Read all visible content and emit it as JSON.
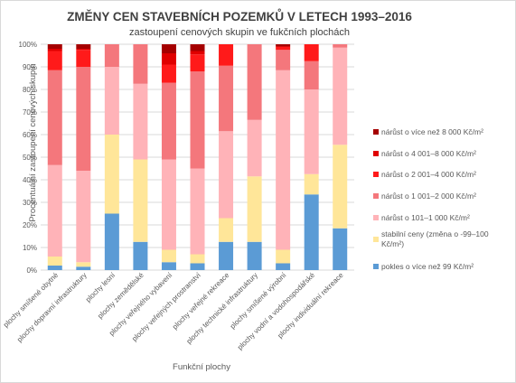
{
  "chart_data": {
    "type": "bar",
    "stacked": "percent",
    "title": "ZMĚNY CEN STAVEBNÍCH POZEMKŮ V LETECH 1993–2016",
    "subtitle": "zastoupení cenových skupin ve fukčních plochách",
    "xlabel": "Funkční plochy",
    "ylabel": "Procentuální zastoupení cenových skupin",
    "ylim": [
      0,
      100
    ],
    "yticks": [
      "0%",
      "10%",
      "20%",
      "30%",
      "40%",
      "50%",
      "60%",
      "70%",
      "80%",
      "90%",
      "100%"
    ],
    "grid": true,
    "legend_position": "right",
    "categories": [
      "plochy smíšené obytné",
      "plochy dopravní infrastruktury",
      "plochy lesní",
      "plochy zemědělské",
      "plochy veřejného vybavení",
      "plochy veřejných prostranství",
      "plochy veřejné rekreace",
      "plochy technické infrastruktury",
      "plochy smíšené výrobní",
      "plochy vodní a vodohospodářské",
      "plochy individuální rekreace"
    ],
    "series": [
      {
        "name": "pokles o více než 99 Kč/m²",
        "color": "#5b9bd5",
        "values": [
          2,
          1.5,
          25,
          12.5,
          3.5,
          3,
          12.5,
          12.5,
          3,
          33.5,
          18.5
        ]
      },
      {
        "name": "stabilní ceny (změna o -99–100 Kč/m²)",
        "color": "#ffe699",
        "values": [
          4,
          2,
          35,
          36.5,
          5.5,
          4,
          10.5,
          29,
          6,
          9,
          37
        ]
      },
      {
        "name": "nárůst o 101–1 000 Kč/m²",
        "color": "#ffb3b8",
        "values": [
          40.5,
          40.5,
          30,
          33.5,
          40,
          38,
          38.5,
          25,
          79.5,
          37.5,
          43
        ]
      },
      {
        "name": "nárůst o 1 001–2 000 Kč/m²",
        "color": "#f4777c",
        "values": [
          42,
          46,
          10,
          17.5,
          34,
          43,
          29,
          33.5,
          9,
          12.5,
          1.5
        ]
      },
      {
        "name": "nárůst o 2 001–4 000 Kč/m²",
        "color": "#ff1a1a",
        "values": [
          8.5,
          7.5,
          0,
          0,
          8,
          7.5,
          9.5,
          0,
          1.5,
          7.5,
          0
        ]
      },
      {
        "name": "nárůst o 4 001–8 000 Kč/m²",
        "color": "#e00000",
        "values": [
          1,
          0.5,
          0,
          0,
          5,
          1.5,
          0,
          0,
          0,
          0,
          0
        ]
      },
      {
        "name": "nárůst o více než 8 000 Kč/m²",
        "color": "#a50000",
        "values": [
          2,
          2,
          0,
          0,
          4,
          3,
          0,
          0,
          1,
          0,
          0
        ]
      }
    ]
  }
}
